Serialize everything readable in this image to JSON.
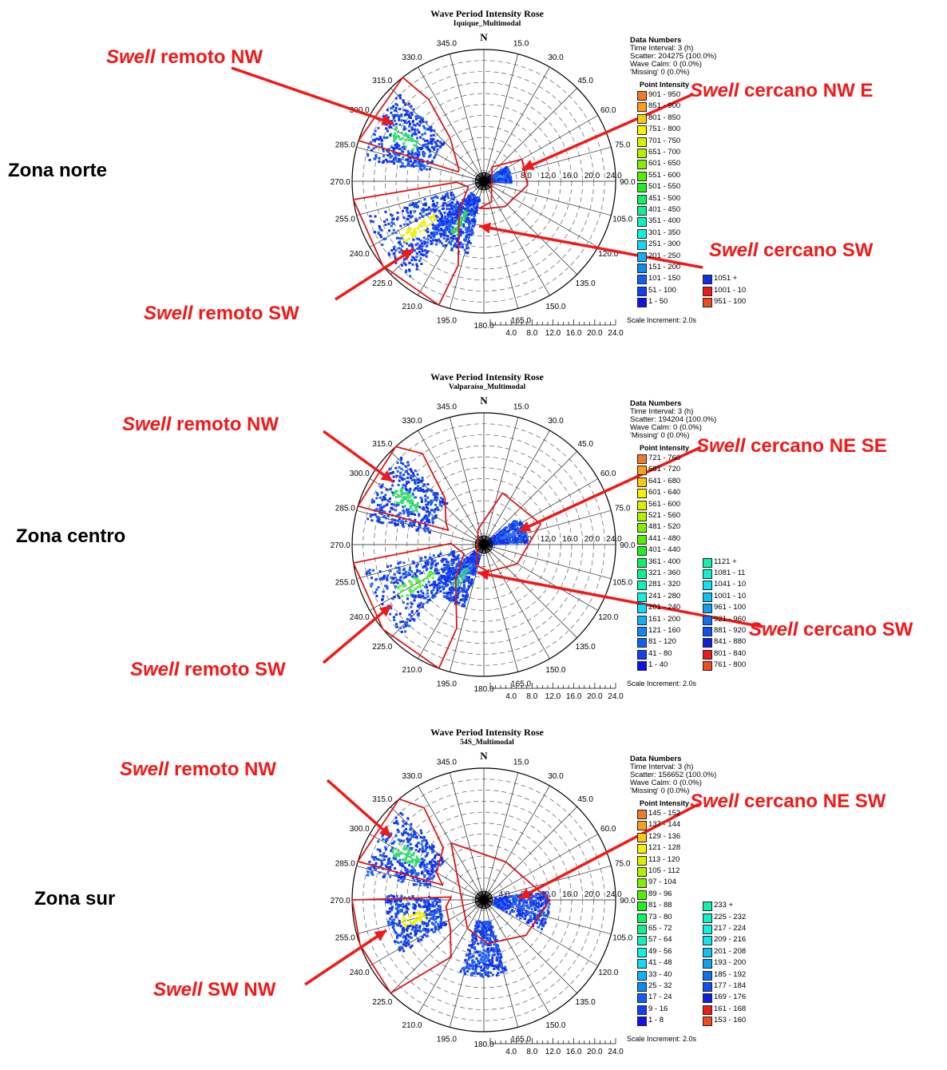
{
  "chart_data": [
    {
      "type": "scatter",
      "title": "Wave Period Intensity Rose",
      "subtitle": "Iquique_Multimodal",
      "zone_label": "Zona norte",
      "direction_labels": [
        "N",
        "15.0",
        "30.0",
        "45.0",
        "60.0",
        "75.0",
        "90.0",
        "105.0",
        "120.0",
        "135.0",
        "150.0",
        "165.0",
        "180.0",
        "195.0",
        "210.0",
        "225.0",
        "240.0",
        "255.0",
        "270.0",
        "285.0",
        "300.0",
        "315.0",
        "330.0",
        "345.0"
      ],
      "radial_ticks": [
        "4.0",
        "8.0",
        "12.0",
        "16.0",
        "20.0",
        "24.0"
      ],
      "scale_increment": "Scale Increment: 2.0s",
      "data_numbers": {
        "heading": "Data Numbers",
        "time_interval": "Time Interval: 3 (h)",
        "scatter": "Scatter: 204275 (100.0%)",
        "wave_calm": "Wave Calm: 0 (0.0%)",
        "missing": "'Missing' 0 (0.0%)"
      },
      "legend_title": "Point Intensity",
      "legend": [
        {
          "label": "901 - 950",
          "color": "#f07a2a"
        },
        {
          "label": "851 - 900",
          "color": "#f5a020"
        },
        {
          "label": "801 - 850",
          "color": "#f8c818"
        },
        {
          "label": "751 - 800",
          "color": "#f8f000"
        },
        {
          "label": "701 - 750",
          "color": "#d8f000"
        },
        {
          "label": "651 - 700",
          "color": "#b0f000"
        },
        {
          "label": "601 - 650",
          "color": "#80f000"
        },
        {
          "label": "551 - 600",
          "color": "#50f000"
        },
        {
          "label": "501 - 550",
          "color": "#20f020"
        },
        {
          "label": "451 - 500",
          "color": "#10f060"
        },
        {
          "label": "401 - 450",
          "color": "#10f090"
        },
        {
          "label": "351 - 400",
          "color": "#10f0b8"
        },
        {
          "label": "301 - 350",
          "color": "#10f0e0"
        },
        {
          "label": "251 - 300",
          "color": "#10d8f8"
        },
        {
          "label": "201 - 250",
          "color": "#10b0f8"
        },
        {
          "label": "151 - 200",
          "color": "#1088f0"
        },
        {
          "label": "101 - 150",
          "color": "#1060f0"
        },
        {
          "label": "51 - 100",
          "color": "#1040f0"
        },
        {
          "label": "1 - 50",
          "color": "#1010f0"
        }
      ],
      "legend_extra": [
        {
          "label": "1051 +",
          "color": "#1030e8"
        },
        {
          "label": "1001 - 10",
          "color": "#f01818"
        },
        {
          "label": "951 - 100",
          "color": "#f04a20"
        }
      ],
      "clusters": [
        {
          "direction_deg": 298,
          "period_s": [
            10,
            22
          ],
          "peak": "#30e070"
        },
        {
          "direction_deg": 235,
          "period_s": [
            6,
            22
          ],
          "peak": "#f0f000"
        },
        {
          "direction_deg": 210,
          "period_s": [
            3,
            14
          ],
          "peak": "#30d070"
        },
        {
          "direction_deg": 75,
          "period_s": [
            1,
            5
          ],
          "peak": "#30a0f0"
        }
      ],
      "annotations": [
        {
          "em": "Swell",
          "text": " remoto NW"
        },
        {
          "em": "Swell",
          "text": " cercano NW E"
        },
        {
          "em": "Swell",
          "text": " cercano SW"
        },
        {
          "em": "Swell",
          "text": " remoto SW"
        }
      ]
    },
    {
      "type": "scatter",
      "title": "Wave Period Intensity Rose",
      "subtitle": "Valparaíso_Multimodal",
      "zone_label": "Zona centro",
      "direction_labels": [
        "N",
        "15.0",
        "30.0",
        "45.0",
        "60.0",
        "75.0",
        "90.0",
        "105.0",
        "120.0",
        "135.0",
        "150.0",
        "165.0",
        "180.0",
        "195.0",
        "210.0",
        "225.0",
        "240.0",
        "255.0",
        "270.0",
        "285.0",
        "300.0",
        "315.0",
        "330.0",
        "345.0"
      ],
      "radial_ticks": [
        "4.0",
        "8.0",
        "12.0",
        "16.0",
        "20.0",
        "24.0"
      ],
      "scale_increment": "Scale Increment: 2.0s",
      "data_numbers": {
        "heading": "Data Numbers",
        "time_interval": "Time Interval: 3 (h)",
        "scatter": "Scatter: 194204 (100.0%)",
        "wave_calm": "Wave Calm: 0 (0.0%)",
        "missing": "'Missing' 0 (0.0%)"
      },
      "legend_title": "Point Intensity",
      "legend": [
        {
          "label": "721 - 760",
          "color": "#f07a2a"
        },
        {
          "label": "681 - 720",
          "color": "#f5a020"
        },
        {
          "label": "641 - 680",
          "color": "#f8c818"
        },
        {
          "label": "601 - 640",
          "color": "#f8f000"
        },
        {
          "label": "561 - 600",
          "color": "#d8f000"
        },
        {
          "label": "521 - 560",
          "color": "#b0f000"
        },
        {
          "label": "481 - 520",
          "color": "#80f000"
        },
        {
          "label": "441 - 480",
          "color": "#50f000"
        },
        {
          "label": "401 - 440",
          "color": "#20f020"
        },
        {
          "label": "361 - 400",
          "color": "#10f060"
        },
        {
          "label": "321 - 360",
          "color": "#10f090"
        },
        {
          "label": "281 - 320",
          "color": "#10f0b8"
        },
        {
          "label": "241 - 280",
          "color": "#10f0e0"
        },
        {
          "label": "201 - 240",
          "color": "#10d8f8"
        },
        {
          "label": "161 - 200",
          "color": "#10b0f8"
        },
        {
          "label": "121 - 160",
          "color": "#1088f0"
        },
        {
          "label": "81 - 120",
          "color": "#1060f0"
        },
        {
          "label": "41 - 80",
          "color": "#1040f0"
        },
        {
          "label": "1 - 40",
          "color": "#1010f0"
        }
      ],
      "legend_extra": [
        {
          "label": "1121 +",
          "color": "#10f0b0"
        },
        {
          "label": "1081 - 11",
          "color": "#10f0d0"
        },
        {
          "label": "1041 - 10",
          "color": "#10e0f0"
        },
        {
          "label": "1001 - 10",
          "color": "#10c0f0"
        },
        {
          "label": "961 - 100",
          "color": "#10a0f0"
        },
        {
          "label": "921 - 960",
          "color": "#1070f0"
        },
        {
          "label": "881 - 920",
          "color": "#1050f0"
        },
        {
          "label": "841 - 880",
          "color": "#1020e0"
        },
        {
          "label": "801 - 840",
          "color": "#f01818"
        },
        {
          "label": "761 - 800",
          "color": "#f04a20"
        }
      ],
      "clusters": [
        {
          "direction_deg": 300,
          "period_s": [
            10,
            22
          ],
          "peak": "#30e070"
        },
        {
          "direction_deg": 240,
          "period_s": [
            5,
            22
          ],
          "peak": "#50f040"
        },
        {
          "direction_deg": 215,
          "period_s": [
            2,
            12
          ],
          "peak": "#30c0a0"
        },
        {
          "direction_deg": 70,
          "period_s": [
            1,
            8
          ],
          "peak": "#3070f0"
        }
      ],
      "annotations": [
        {
          "em": "Swell",
          "text": " remoto NW"
        },
        {
          "em": "Swell",
          "text": " cercano NE SE"
        },
        {
          "em": "Swell",
          "text": " cercano SW"
        },
        {
          "em": "Swell",
          "text": " remoto SW"
        }
      ]
    },
    {
      "type": "scatter",
      "title": "Wave Period Intensity Rose",
      "subtitle": "54S_Multimodal",
      "zone_label": "Zona sur",
      "direction_labels": [
        "N",
        "15.0",
        "30.0",
        "45.0",
        "60.0",
        "75.0",
        "90.0",
        "105.0",
        "120.0",
        "135.0",
        "150.0",
        "165.0",
        "180.0",
        "195.0",
        "210.0",
        "225.0",
        "240.0",
        "255.0",
        "270.0",
        "285.0",
        "300.0",
        "315.0",
        "330.0",
        "345.0"
      ],
      "radial_ticks": [
        "4.0",
        "8.0",
        "12.0",
        "16.0",
        "20.0",
        "24.0"
      ],
      "scale_increment": "Scale Increment: 2.0s",
      "data_numbers": {
        "heading": "Data Numbers",
        "time_interval": "Time Interval: 3 (h)",
        "scatter": "Scatter: 156652 (100.0%)",
        "wave_calm": "Wave Calm: 0 (0.0%)",
        "missing": "'Missing' 0 (0.0%)"
      },
      "legend_title": "Point Intensity",
      "legend": [
        {
          "label": "145 - 152",
          "color": "#f07a2a"
        },
        {
          "label": "137 - 144",
          "color": "#f5a020"
        },
        {
          "label": "129 - 136",
          "color": "#f8c818"
        },
        {
          "label": "121 - 128",
          "color": "#f8f000"
        },
        {
          "label": "113 - 120",
          "color": "#d8f000"
        },
        {
          "label": "105 - 112",
          "color": "#b0f000"
        },
        {
          "label": "97 - 104",
          "color": "#80f000"
        },
        {
          "label": "89 - 96",
          "color": "#50f000"
        },
        {
          "label": "81 - 88",
          "color": "#20f020"
        },
        {
          "label": "73 - 80",
          "color": "#10f060"
        },
        {
          "label": "65 - 72",
          "color": "#10f090"
        },
        {
          "label": "57 - 64",
          "color": "#10f0b8"
        },
        {
          "label": "49 - 56",
          "color": "#10f0e0"
        },
        {
          "label": "41 - 48",
          "color": "#10d8f8"
        },
        {
          "label": "33 - 40",
          "color": "#10b0f8"
        },
        {
          "label": "25 - 32",
          "color": "#1088f0"
        },
        {
          "label": "17 - 24",
          "color": "#1060f0"
        },
        {
          "label": "9 - 16",
          "color": "#1040f0"
        },
        {
          "label": "1 - 8",
          "color": "#1010f0"
        }
      ],
      "legend_extra": [
        {
          "label": "233 +",
          "color": "#10f0b0"
        },
        {
          "label": "225 - 232",
          "color": "#10f0c8"
        },
        {
          "label": "217 - 224",
          "color": "#10f0e0"
        },
        {
          "label": "209 - 216",
          "color": "#10e0f0"
        },
        {
          "label": "201 - 208",
          "color": "#10c0f0"
        },
        {
          "label": "193 - 200",
          "color": "#10a0f0"
        },
        {
          "label": "185 - 192",
          "color": "#1070f0"
        },
        {
          "label": "177 - 184",
          "color": "#1050f0"
        },
        {
          "label": "169 - 176",
          "color": "#1020e0"
        },
        {
          "label": "161 - 168",
          "color": "#f01818"
        },
        {
          "label": "153 - 160",
          "color": "#f04a20"
        }
      ],
      "clusters": [
        {
          "direction_deg": 300,
          "period_s": [
            10,
            22
          ],
          "peak": "#30e070"
        },
        {
          "direction_deg": 255,
          "period_s": [
            8,
            18
          ],
          "peak": "#f0f000"
        },
        {
          "direction_deg": 180,
          "period_s": [
            4,
            14
          ],
          "peak": "#3070f0"
        },
        {
          "direction_deg": 100,
          "period_s": [
            2,
            12
          ],
          "peak": "#3060f0"
        }
      ],
      "annotations": [
        {
          "em": "Swell",
          "text": " remoto NW"
        },
        {
          "em": "Swell",
          "text": " cercano NE SW"
        },
        {
          "em": "Swell",
          "text": " SW NW"
        }
      ]
    }
  ]
}
